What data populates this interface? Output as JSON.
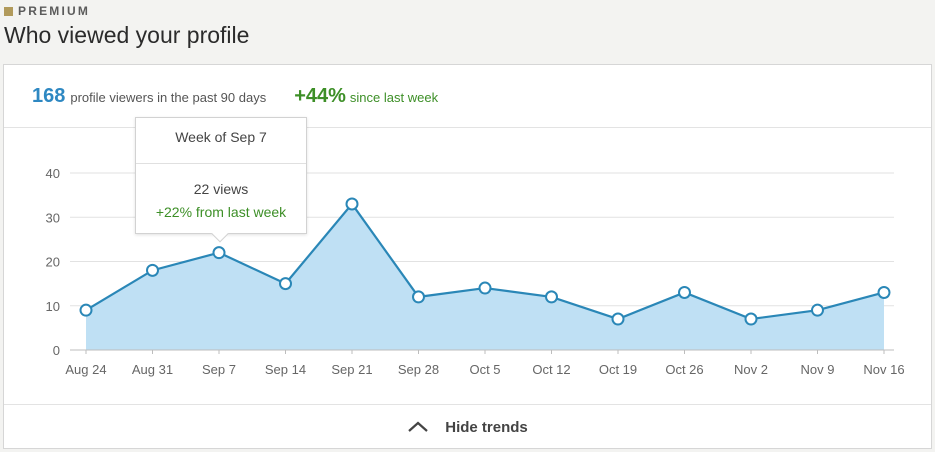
{
  "header": {
    "badge_label": "PREMIUM",
    "title": "Who viewed your profile"
  },
  "summary": {
    "viewer_count": "168",
    "viewer_text": "profile viewers in the past 90 days",
    "growth_pct": "+44%",
    "growth_text": "since last week"
  },
  "tooltip": {
    "week": "Week of Sep 7",
    "views": "22 views",
    "change": "+22% from last week"
  },
  "footer": {
    "hide_trends_label": "Hide trends"
  },
  "colors": {
    "line": "#2a87b7",
    "area": "#bfe0f4",
    "count_blue": "#2e88c2",
    "growth_green": "#3d8f27"
  },
  "chart_data": {
    "type": "area",
    "categories": [
      "Aug 24",
      "Aug 31",
      "Sep 7",
      "Sep 14",
      "Sep 21",
      "Sep 28",
      "Oct 5",
      "Oct 12",
      "Oct 19",
      "Oct 26",
      "Nov 2",
      "Nov 9",
      "Nov 16"
    ],
    "values": [
      9,
      18,
      22,
      15,
      33,
      12,
      14,
      12,
      7,
      13,
      7,
      9,
      13
    ],
    "yticks": [
      "0",
      "10",
      "20",
      "30",
      "40"
    ],
    "ylim": [
      0,
      40
    ],
    "highlighted_category": "Sep 7",
    "grid": true
  }
}
